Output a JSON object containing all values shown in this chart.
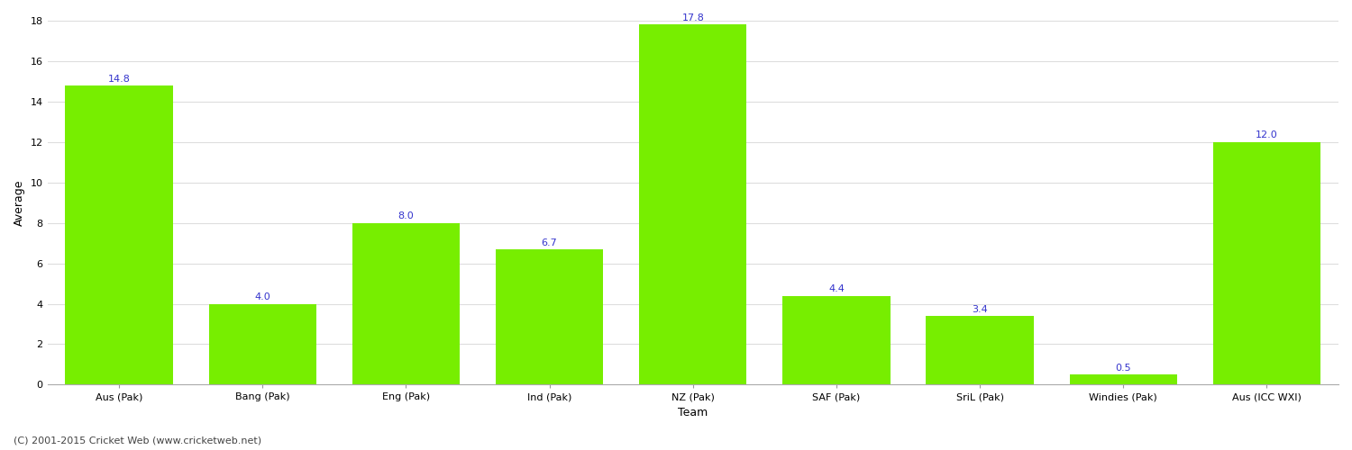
{
  "categories": [
    "Aus (Pak)",
    "Bang (Pak)",
    "Eng (Pak)",
    "Ind (Pak)",
    "NZ (Pak)",
    "SAF (Pak)",
    "SriL (Pak)",
    "Windies (Pak)",
    "Aus (ICC WXI)"
  ],
  "values": [
    14.8,
    4.0,
    8.0,
    6.7,
    17.8,
    4.4,
    3.4,
    0.5,
    12.0
  ],
  "bar_color": "#77ee00",
  "bar_edge_color": "#77ee00",
  "value_label_color": "#3333cc",
  "title": "",
  "xlabel": "Team",
  "ylabel": "Average",
  "ylim": [
    0,
    18
  ],
  "yticks": [
    0,
    2,
    4,
    6,
    8,
    10,
    12,
    14,
    16,
    18
  ],
  "grid_color": "#dddddd",
  "background_color": "#ffffff",
  "footer_text": "(C) 2001-2015 Cricket Web (www.cricketweb.net)",
  "axis_label_fontsize": 9,
  "tick_fontsize": 8,
  "value_label_fontsize": 8,
  "footer_fontsize": 8
}
